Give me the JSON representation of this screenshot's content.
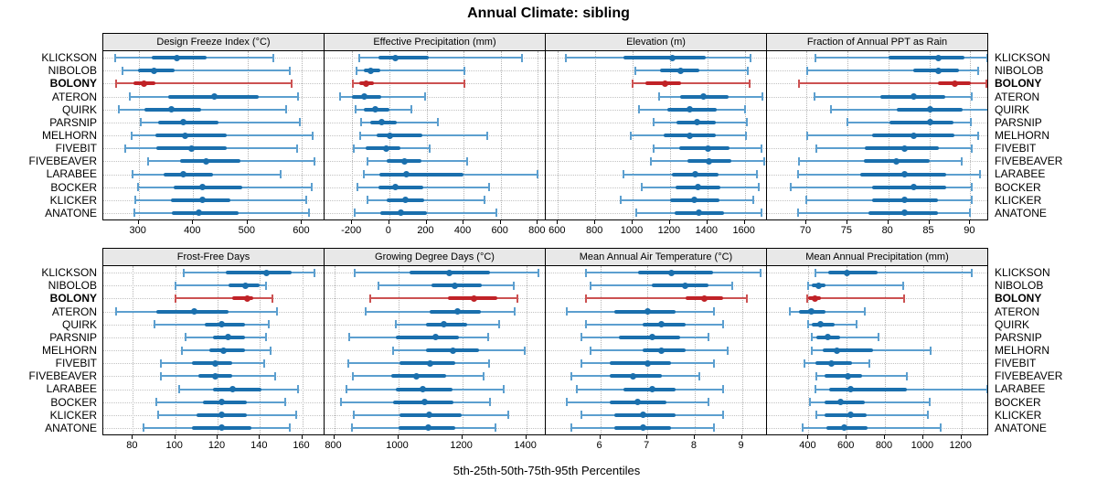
{
  "title": "Annual Climate: sibling",
  "caption": "5th-25th-50th-75th-95th Percentiles",
  "stations": [
    "KLICKSON",
    "NIBOLOB",
    "BOLONY",
    "ATERON",
    "QUIRK",
    "PARSNIP",
    "MELHORN",
    "FIVEBIT",
    "FIVEBEAVER",
    "LARABEE",
    "BOCKER",
    "KLICKER",
    "ANATONE"
  ],
  "highlight_station": "BOLONY",
  "colors": {
    "blue": "#1a6fad",
    "blue_light": "#5c9fcf",
    "red": "#c02227",
    "red_light": "#cc5252",
    "grid": "#b4b4b4",
    "strip_bg": "#e8e8e8"
  },
  "chart_data": {
    "type": "dotplot-percentiles",
    "percentiles": [
      5,
      25,
      50,
      75,
      95
    ],
    "layout": {
      "rows": 2,
      "cols": 4,
      "grid": "dotted",
      "legend_position": "none",
      "row_order_top_to_bottom": true
    },
    "panels": [
      {
        "title": "Design Freeze Index (°C)",
        "xlim": [
          235,
          643
        ],
        "ticks": [
          300,
          400,
          500,
          600
        ],
        "values": {
          "KLICKSON": [
            257,
            324,
            370,
            425,
            548
          ],
          "NIBOLOB": [
            271,
            299,
            328,
            366,
            577
          ],
          "BOLONY": [
            258,
            290,
            310,
            331,
            580
          ],
          "ATERON": [
            284,
            354,
            439,
            521,
            593
          ],
          "QUIRK": [
            264,
            310,
            360,
            414,
            570
          ],
          "PARSNIP": [
            303,
            335,
            382,
            446,
            596
          ],
          "MELHORN": [
            287,
            331,
            386,
            461,
            620
          ],
          "FIVEBIT": [
            275,
            333,
            397,
            461,
            591
          ],
          "FIVEBEAVER": [
            317,
            376,
            424,
            487,
            622
          ],
          "LARABEE": [
            288,
            346,
            382,
            437,
            560
          ],
          "BOCKER": [
            298,
            365,
            417,
            490,
            618
          ],
          "KLICKER": [
            293,
            360,
            417,
            469,
            608
          ],
          "ANATONE": [
            292,
            361,
            411,
            483,
            612
          ]
        }
      },
      {
        "title": "Effective Precipitation (mm)",
        "xlim": [
          -349,
          848
        ],
        "ticks": [
          -200,
          0,
          200,
          400,
          600,
          800
        ],
        "values": {
          "KLICKSON": [
            -162,
            -61,
            34,
            210,
            715
          ],
          "NIBOLOB": [
            -175,
            -138,
            -102,
            -48,
            406
          ],
          "BOLONY": [
            -195,
            -162,
            -126,
            -85,
            406
          ],
          "ATERON": [
            -265,
            -203,
            -134,
            -44,
            193
          ],
          "QUIRK": [
            -184,
            -138,
            -77,
            2,
            120
          ],
          "PARSNIP": [
            -151,
            -105,
            -39,
            38,
            262
          ],
          "MELHORN": [
            -159,
            -69,
            5,
            180,
            529
          ],
          "FIVEBIT": [
            -192,
            -126,
            -15,
            62,
            215
          ],
          "FIVEBEAVER": [
            -118,
            -12,
            82,
            174,
            418
          ],
          "LARABEE": [
            -138,
            -52,
            92,
            398,
            800
          ],
          "BOCKER": [
            -170,
            -61,
            33,
            182,
            538
          ],
          "KLICKER": [
            -118,
            -12,
            87,
            190,
            513
          ],
          "ANATONE": [
            -187,
            -48,
            62,
            202,
            579
          ]
        }
      },
      {
        "title": "Elevation (m)",
        "xlim": [
          535,
          1724
        ],
        "ticks": [
          600,
          800,
          1000,
          1200,
          1400,
          1600
        ],
        "values": {
          "KLICKSON": [
            641,
            951,
            1214,
            1389,
            1630
          ],
          "NIBOLOB": [
            1016,
            1144,
            1258,
            1359,
            1614
          ],
          "BOLONY": [
            1000,
            1070,
            1172,
            1261,
            1625
          ],
          "ATERON": [
            1140,
            1255,
            1377,
            1516,
            1694
          ],
          "QUIRK": [
            1033,
            1185,
            1307,
            1449,
            1601
          ],
          "PARSNIP": [
            1114,
            1234,
            1345,
            1443,
            1609
          ],
          "MELHORN": [
            989,
            1165,
            1304,
            1446,
            1606
          ],
          "FIVEBIT": [
            1111,
            1247,
            1402,
            1519,
            1691
          ],
          "FIVEBEAVER": [
            1098,
            1291,
            1410,
            1528,
            1702
          ],
          "LARABEE": [
            951,
            1209,
            1337,
            1462,
            1663
          ],
          "BOCKER": [
            1049,
            1230,
            1348,
            1470,
            1674
          ],
          "KLICKER": [
            935,
            1198,
            1328,
            1466,
            1647
          ],
          "ANATONE": [
            1021,
            1225,
            1356,
            1490,
            1691
          ]
        }
      },
      {
        "title": "Fraction of Annual PPT as Rain",
        "xlim": [
          65.2,
          92.3
        ],
        "ticks": [
          70,
          75,
          80,
          85,
          90
        ],
        "values": {
          "KLICKSON": [
            71.1,
            80.0,
            86.1,
            89.3,
            92.1
          ],
          "NIBOLOB": [
            70.1,
            83.0,
            86.1,
            88.6,
            91.0
          ],
          "BOLONY": [
            69.1,
            86.0,
            88.1,
            90.1,
            92.0
          ],
          "ATERON": [
            71.0,
            79.0,
            83.1,
            87.0,
            90.2
          ],
          "QUIRK": [
            73.0,
            81.0,
            85.1,
            89.1,
            92.2
          ],
          "PARSNIP": [
            75.0,
            80.1,
            85.1,
            88.0,
            90.1
          ],
          "MELHORN": [
            70.1,
            78.0,
            83.1,
            88.1,
            91.0
          ],
          "FIVEBIT": [
            71.2,
            77.1,
            82.0,
            86.2,
            90.2
          ],
          "FIVEBEAVER": [
            69.1,
            77.0,
            81.0,
            85.1,
            89.0
          ],
          "LARABEE": [
            69.0,
            76.6,
            82.0,
            87.1,
            91.2
          ],
          "BOCKER": [
            68.1,
            78.0,
            83.1,
            87.1,
            90.2
          ],
          "KLICKER": [
            70.0,
            78.0,
            82.0,
            86.1,
            90.2
          ],
          "ANATONE": [
            69.0,
            77.6,
            82.0,
            86.1,
            90.0
          ]
        }
      },
      {
        "title": "Frost-Free Days",
        "xlim": [
          66,
          171
        ],
        "ticks": [
          80,
          100,
          120,
          140,
          160
        ],
        "values": {
          "KLICKSON": [
            104,
            124,
            143,
            155,
            166
          ],
          "NIBOLOB": [
            100,
            125,
            133,
            140,
            143
          ],
          "BOLONY": [
            100,
            127,
            134,
            137,
            146
          ],
          "ATERON": [
            72,
            91,
            109,
            125,
            148
          ],
          "QUIRK": [
            90,
            114,
            122,
            133,
            144
          ],
          "PARSNIP": [
            105,
            118,
            125,
            133,
            143
          ],
          "MELHORN": [
            103,
            116,
            123,
            133,
            145
          ],
          "FIVEBIT": [
            93,
            108,
            119,
            127,
            142
          ],
          "FIVEBEAVER": [
            93,
            111,
            119,
            127,
            147
          ],
          "LARABEE": [
            102,
            118,
            127,
            141,
            158
          ],
          "BOCKER": [
            91,
            113,
            122,
            134,
            152
          ],
          "KLICKER": [
            92,
            110,
            122,
            134,
            157
          ],
          "ANATONE": [
            85,
            108,
            122,
            136,
            154
          ]
        }
      },
      {
        "title": "Growing Degree Days (°C)",
        "xlim": [
          770,
          1464
        ],
        "ticks": [
          800,
          1000,
          1200,
          1400
        ],
        "values": {
          "KLICKSON": [
            864,
            1036,
            1160,
            1286,
            1438
          ],
          "NIBOLOB": [
            938,
            1105,
            1178,
            1262,
            1362
          ],
          "BOLONY": [
            914,
            1155,
            1236,
            1310,
            1373
          ],
          "ATERON": [
            898,
            1098,
            1184,
            1260,
            1364
          ],
          "QUIRK": [
            992,
            1086,
            1143,
            1216,
            1314
          ],
          "PARSNIP": [
            846,
            992,
            1117,
            1190,
            1281
          ],
          "MELHORN": [
            983,
            1086,
            1170,
            1252,
            1395
          ],
          "FIVEBIT": [
            843,
            1005,
            1100,
            1179,
            1283
          ],
          "FIVEBEAVER": [
            857,
            979,
            1057,
            1150,
            1267
          ],
          "LARABEE": [
            838,
            992,
            1076,
            1171,
            1329
          ],
          "BOCKER": [
            822,
            983,
            1083,
            1174,
            1288
          ],
          "KLICKER": [
            862,
            1005,
            1098,
            1198,
            1343
          ],
          "ANATONE": [
            855,
            1000,
            1093,
            1179,
            1303
          ]
        }
      },
      {
        "title": "Mean Annual Air Temperature (°C)",
        "xlim": [
          4.85,
          9.55
        ],
        "ticks": [
          6,
          7,
          8,
          9
        ],
        "values": {
          "KLICKSON": [
            5.7,
            6.8,
            7.5,
            8.4,
            9.4
          ],
          "NIBOLOB": [
            5.8,
            7.1,
            7.8,
            8.3,
            8.8
          ],
          "BOLONY": [
            5.7,
            7.8,
            8.2,
            8.6,
            9.1
          ],
          "ATERON": [
            5.3,
            6.3,
            7.0,
            7.6,
            8.4
          ],
          "QUIRK": [
            5.7,
            6.9,
            7.3,
            7.8,
            8.6
          ],
          "PARSNIP": [
            5.6,
            6.4,
            7.1,
            7.7,
            8.3
          ],
          "MELHORN": [
            5.8,
            6.9,
            7.3,
            7.8,
            8.7
          ],
          "FIVEBIT": [
            5.6,
            6.2,
            7.0,
            7.5,
            8.4
          ],
          "FIVEBEAVER": [
            5.4,
            6.2,
            6.7,
            7.3,
            8.1
          ],
          "LARABEE": [
            5.5,
            6.5,
            7.1,
            7.6,
            8.6
          ],
          "BOCKER": [
            5.3,
            6.2,
            6.8,
            7.4,
            8.3
          ],
          "KLICKER": [
            5.6,
            6.3,
            6.9,
            7.6,
            8.6
          ],
          "ANATONE": [
            5.4,
            6.3,
            6.9,
            7.5,
            8.4
          ]
        }
      },
      {
        "title": "Mean Annual Precipitation (mm)",
        "xlim": [
          183,
          1345
        ],
        "ticks": [
          400,
          600,
          800,
          1000,
          1200
        ],
        "values": {
          "KLICKSON": [
            435,
            504,
            602,
            762,
            1256
          ],
          "NIBOLOB": [
            400,
            419,
            454,
            488,
            897
          ],
          "BOLONY": [
            392,
            400,
            435,
            467,
            902
          ],
          "ATERON": [
            304,
            352,
            414,
            491,
            695
          ],
          "QUIRK": [
            400,
            419,
            464,
            535,
            650
          ],
          "PARSNIP": [
            419,
            443,
            499,
            567,
            765
          ],
          "MELHORN": [
            419,
            475,
            547,
            738,
            1041
          ],
          "FIVEBIT": [
            379,
            435,
            518,
            626,
            717
          ],
          "FIVEBEAVER": [
            443,
            483,
            607,
            682,
            916
          ],
          "LARABEE": [
            435,
            507,
            618,
            913,
            1336
          ],
          "BOCKER": [
            408,
            483,
            566,
            693,
            1036
          ],
          "KLICKER": [
            440,
            483,
            618,
            706,
            1025
          ],
          "ANATONE": [
            371,
            494,
            587,
            711,
            1093
          ]
        }
      }
    ]
  }
}
